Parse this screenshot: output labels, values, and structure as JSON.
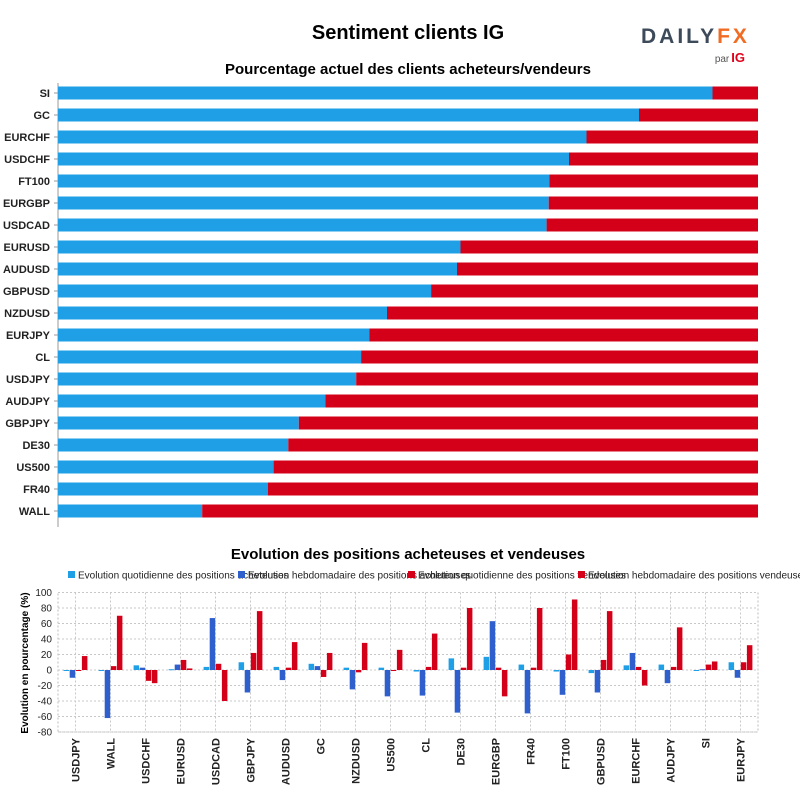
{
  "header": {
    "title": "Sentiment clients IG",
    "brand_a": "DAILY",
    "brand_b": "FX",
    "brand_by": "par",
    "brand_ig": "IG"
  },
  "colors": {
    "buyers": "#1fa0e6",
    "sellers": "#d40019",
    "daily_buy": "#1fa0e6",
    "weekly_buy": "#2f5fcc",
    "daily_sell": "#d40019",
    "weekly_sell": "#d40019"
  },
  "chart_data": [
    {
      "type": "bar",
      "orientation": "horizontal",
      "stacked": true,
      "title": "Pourcentage actuel des clients acheteurs/vendeurs",
      "categories": [
        "SI",
        "GC",
        "EURCHF",
        "USDCHF",
        "FT100",
        "EURGBP",
        "USDCAD",
        "EURUSD",
        "AUDUSD",
        "GBPUSD",
        "NZDUSD",
        "EURJPY",
        "CL",
        "USDJPY",
        "AUDJPY",
        "GBPJPY",
        "DE30",
        "US500",
        "FR40",
        "WALL"
      ],
      "series": [
        {
          "key": "buy",
          "values": [
            93.5,
            83,
            75.5,
            73,
            70.2,
            70.1,
            69.8,
            57.5,
            57,
            53.3,
            47,
            44.5,
            43.3,
            42.6,
            38.2,
            34.4,
            32.9,
            30.8,
            30.0,
            20.6
          ]
        },
        {
          "key": "sell",
          "values": [
            6.5,
            17,
            24.5,
            27,
            29.8,
            29.9,
            30.2,
            42.5,
            43,
            46.7,
            53,
            55.5,
            56.7,
            57.4,
            61.8,
            65.6,
            67.1,
            69.2,
            70.0,
            79.4
          ]
        }
      ],
      "xlim": [
        0,
        100
      ]
    },
    {
      "type": "bar",
      "title": "Evolution des positions acheteuses et vendeuses",
      "ylabel": "Evolution en pourcentage (%)",
      "ylim": [
        -80,
        100
      ],
      "yticks": [
        100,
        80,
        60,
        40,
        20,
        0,
        -20,
        -40,
        -60,
        -80
      ],
      "categories": [
        "USDJPY",
        "WALL",
        "USDCHF",
        "EURUSD",
        "USDCAD",
        "GBPJPY",
        "AUDUSD",
        "GC",
        "NZDUSD",
        "US500",
        "CL",
        "DE30",
        "EURGBP",
        "FR40",
        "FT100",
        "GBPUSD",
        "EURCHF",
        "AUDJPY",
        "SI",
        "EURJPY"
      ],
      "series": [
        {
          "name": "Evolution quotidienne des positions acheteuses",
          "values": [
            -1,
            0,
            6,
            1,
            4,
            10,
            4,
            8,
            3,
            3,
            -2,
            15,
            17,
            7,
            -2,
            -4,
            6,
            7,
            -1,
            10
          ]
        },
        {
          "name": "Evolution hebdomadaire des positions acheteuses",
          "values": [
            -10,
            -62,
            3,
            7,
            67,
            -29,
            -13,
            5,
            -25,
            -34,
            -33,
            -55,
            63,
            -56,
            -32,
            -29,
            22,
            -17,
            1,
            -10
          ]
        },
        {
          "name": "Evolution quotidienne des positions vendeuses",
          "values": [
            0,
            5,
            -14,
            13,
            8,
            22,
            3,
            -9,
            -3,
            0,
            4,
            3,
            3,
            3,
            20,
            13,
            4,
            4,
            7,
            10
          ]
        },
        {
          "name": "Evolution hebdomadaire des positions vendeuses",
          "values": [
            18,
            70,
            -17,
            2,
            -40,
            76,
            36,
            22,
            35,
            26,
            47,
            80,
            -34,
            80,
            91,
            76,
            -20,
            55,
            11,
            32
          ]
        }
      ]
    }
  ]
}
